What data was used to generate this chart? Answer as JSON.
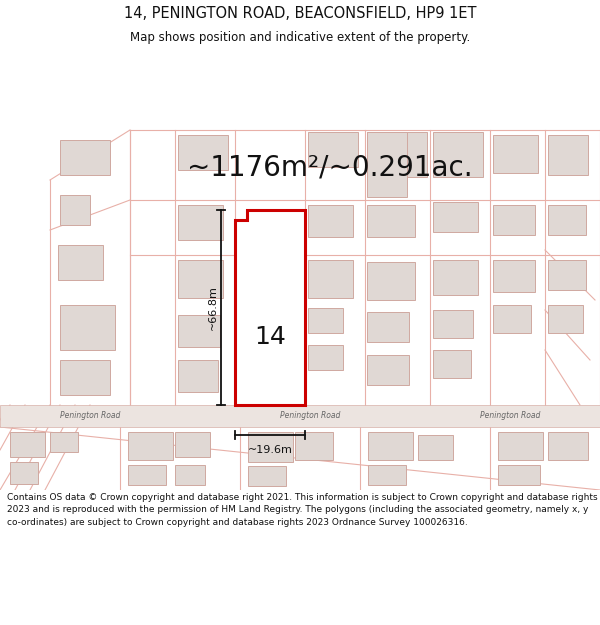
{
  "title_line1": "14, PENINGTON ROAD, BEACONSFIELD, HP9 1ET",
  "title_line2": "Map shows position and indicative extent of the property.",
  "area_text": "~1176m²/~0.291ac.",
  "dim_vertical": "~66.8m",
  "dim_horizontal": "~19.6m",
  "property_number": "14",
  "copyright_text": "Contains OS data © Crown copyright and database right 2021. This information is subject to Crown copyright and database rights 2023 and is reproduced with the permission of HM Land Registry. The polygons (including the associated geometry, namely x, y co-ordinates) are subject to Crown copyright and database rights 2023 Ordnance Survey 100026316.",
  "map_bg": "#f7f4f2",
  "plot_line": "#e8b0a8",
  "bld_fill": "#e0d8d4",
  "bld_edge": "#d0a8a0",
  "road_fill": "#ece4e0",
  "road_edge": "#d8b0a8",
  "highlight_red": "#cc0000",
  "dim_color": "#111111",
  "road_label_color": "#666666",
  "title_color": "#111111",
  "footer_color": "#111111"
}
